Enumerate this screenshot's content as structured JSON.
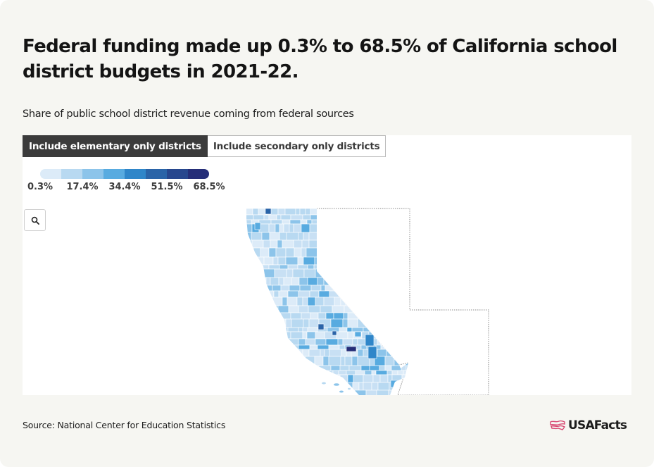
{
  "header": {
    "title": "Federal funding made up 0.3% to 68.5% of California school district budgets in 2021-22.",
    "subtitle": "Share of public school district revenue coming from federal sources"
  },
  "toggles": [
    {
      "label": "Include elementary only districts",
      "active": true
    },
    {
      "label": "Include secondary only districts",
      "active": false
    }
  ],
  "legend": {
    "labels": [
      "0.3%",
      "17.4%",
      "34.4%",
      "51.5%",
      "68.5%"
    ],
    "colors": [
      "#dcebf8",
      "#b8d9f1",
      "#8cc4ea",
      "#58abe0",
      "#2f86c9",
      "#2a64a8",
      "#27478e",
      "#252e78"
    ]
  },
  "map": {
    "zoom_icon": "search-icon",
    "region": "California school districts"
  },
  "footer": {
    "source": "Source: National Center for Education Statistics",
    "brand": "USAFacts",
    "brand_icon": "usa-flag-map-icon"
  }
}
